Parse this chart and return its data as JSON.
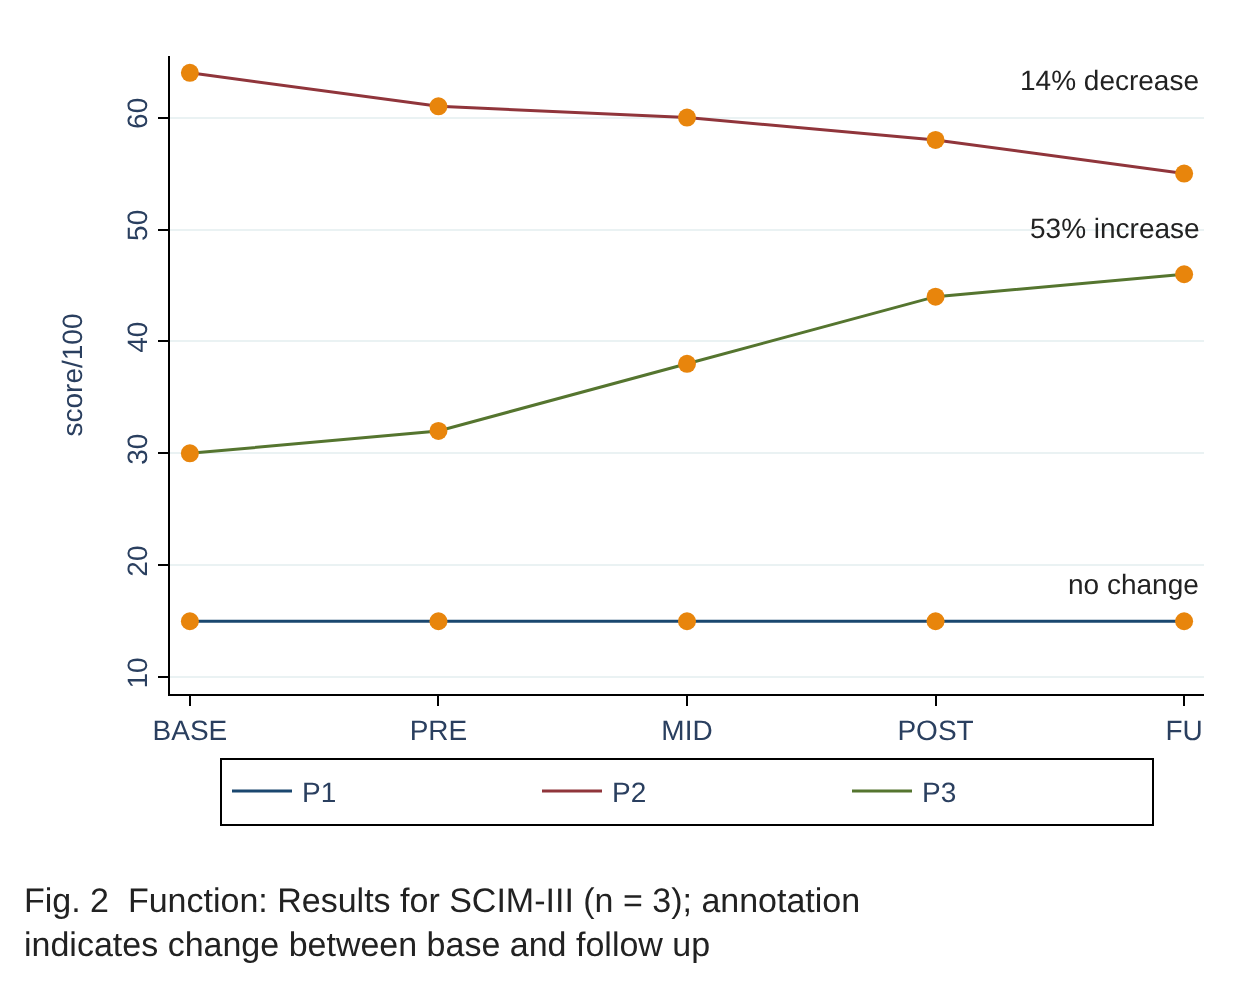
{
  "chart_data": {
    "type": "line",
    "ylabel": "score/100",
    "categories": [
      "BASE",
      "PRE",
      "MID",
      "POST",
      "FU"
    ],
    "series": [
      {
        "name": "P1",
        "color": "#1a476f",
        "colors": [
          "#e8850c",
          "#e8850c",
          "#e8850c",
          "#e8850c",
          "#e8850c"
        ],
        "values": [
          15,
          15,
          15,
          15,
          15
        ]
      },
      {
        "name": "P2",
        "color": "#90353b",
        "colors": [
          "#e8850c",
          "#e8850c",
          "#e8850c",
          "#e8850c",
          "#e8850c"
        ],
        "values": [
          64,
          61,
          60,
          58,
          55
        ]
      },
      {
        "name": "P3",
        "color": "#55752f",
        "colors": [
          "#e8850c",
          "#e8850c",
          "#e8850c",
          "#e8850c",
          "#e8850c"
        ],
        "values": [
          30,
          32,
          38,
          44,
          46
        ]
      }
    ],
    "ylim": [
      8.5,
      65.5
    ],
    "yticks": [
      10,
      20,
      30,
      40,
      50,
      60
    ],
    "grid": "y",
    "legend": "bottom",
    "marker": "circle",
    "annotations": [
      "14% decrease",
      "53% increase",
      "no change",
      "Fig. 2  Function: Results for SCIM-III (n = 3); annotation indicates change between base and follow up"
    ]
  }
}
